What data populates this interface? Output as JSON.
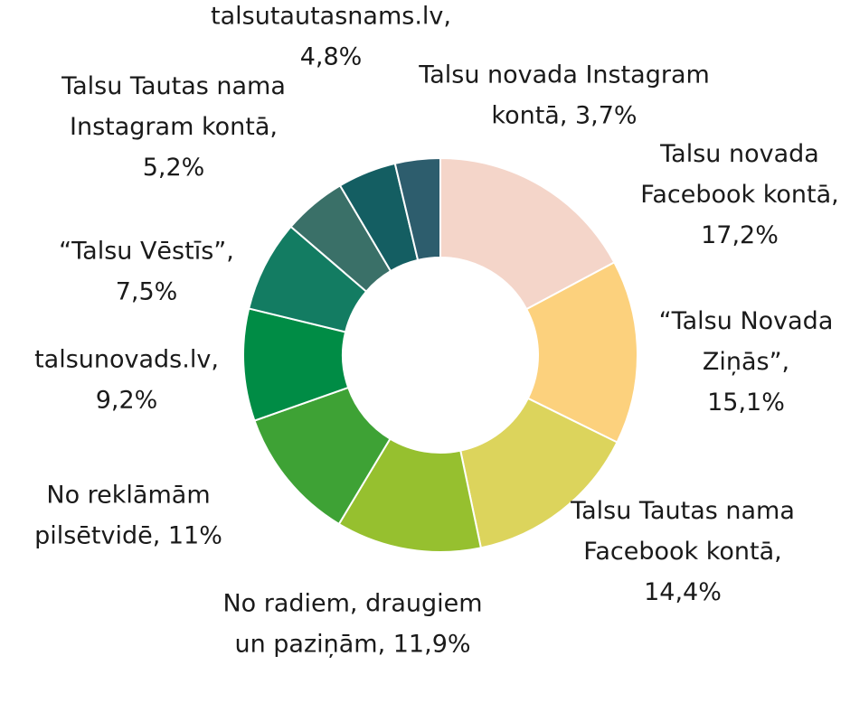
{
  "chart_data": {
    "type": "pie",
    "donut": true,
    "slices": [
      {
        "label_lines": [
          "Talsu novada",
          "Facebook kontā,",
          "17,2%"
        ],
        "value": 17.2,
        "color": "#f4d5c9"
      },
      {
        "label_lines": [
          "“Talsu Novada",
          "Ziņās”,",
          "15,1%"
        ],
        "value": 15.1,
        "color": "#fcd17d"
      },
      {
        "label_lines": [
          "Talsu Tautas nama",
          "Facebook kontā,",
          "14,4%"
        ],
        "value": 14.4,
        "color": "#dcd45c"
      },
      {
        "label_lines": [
          "No radiem, draugiem",
          "un paziņām, 11,9%"
        ],
        "value": 11.9,
        "color": "#96c02f"
      },
      {
        "label_lines": [
          "No reklāmām",
          "pilsētvidē, 11%"
        ],
        "value": 11.0,
        "color": "#3ea235"
      },
      {
        "label_lines": [
          "talsunovads.lv,",
          "9,2%"
        ],
        "value": 9.2,
        "color": "#008c45"
      },
      {
        "label_lines": [
          "“Talsu Vēstīs”,",
          "7,5%"
        ],
        "value": 7.5,
        "color": "#137c62"
      },
      {
        "label_lines": [
          "Talsu Tautas nama",
          "Instagram kontā,",
          "5,2%"
        ],
        "value": 5.2,
        "color": "#3a7068"
      },
      {
        "label_lines": [
          "talsutautasnams.lv,",
          "4,8%"
        ],
        "value": 4.8,
        "color": "#145e62"
      },
      {
        "label_lines": [
          "Talsu novada Instagram",
          "kontā, 3,7%"
        ],
        "value": 3.7,
        "color": "#2d5d6d"
      }
    ]
  }
}
